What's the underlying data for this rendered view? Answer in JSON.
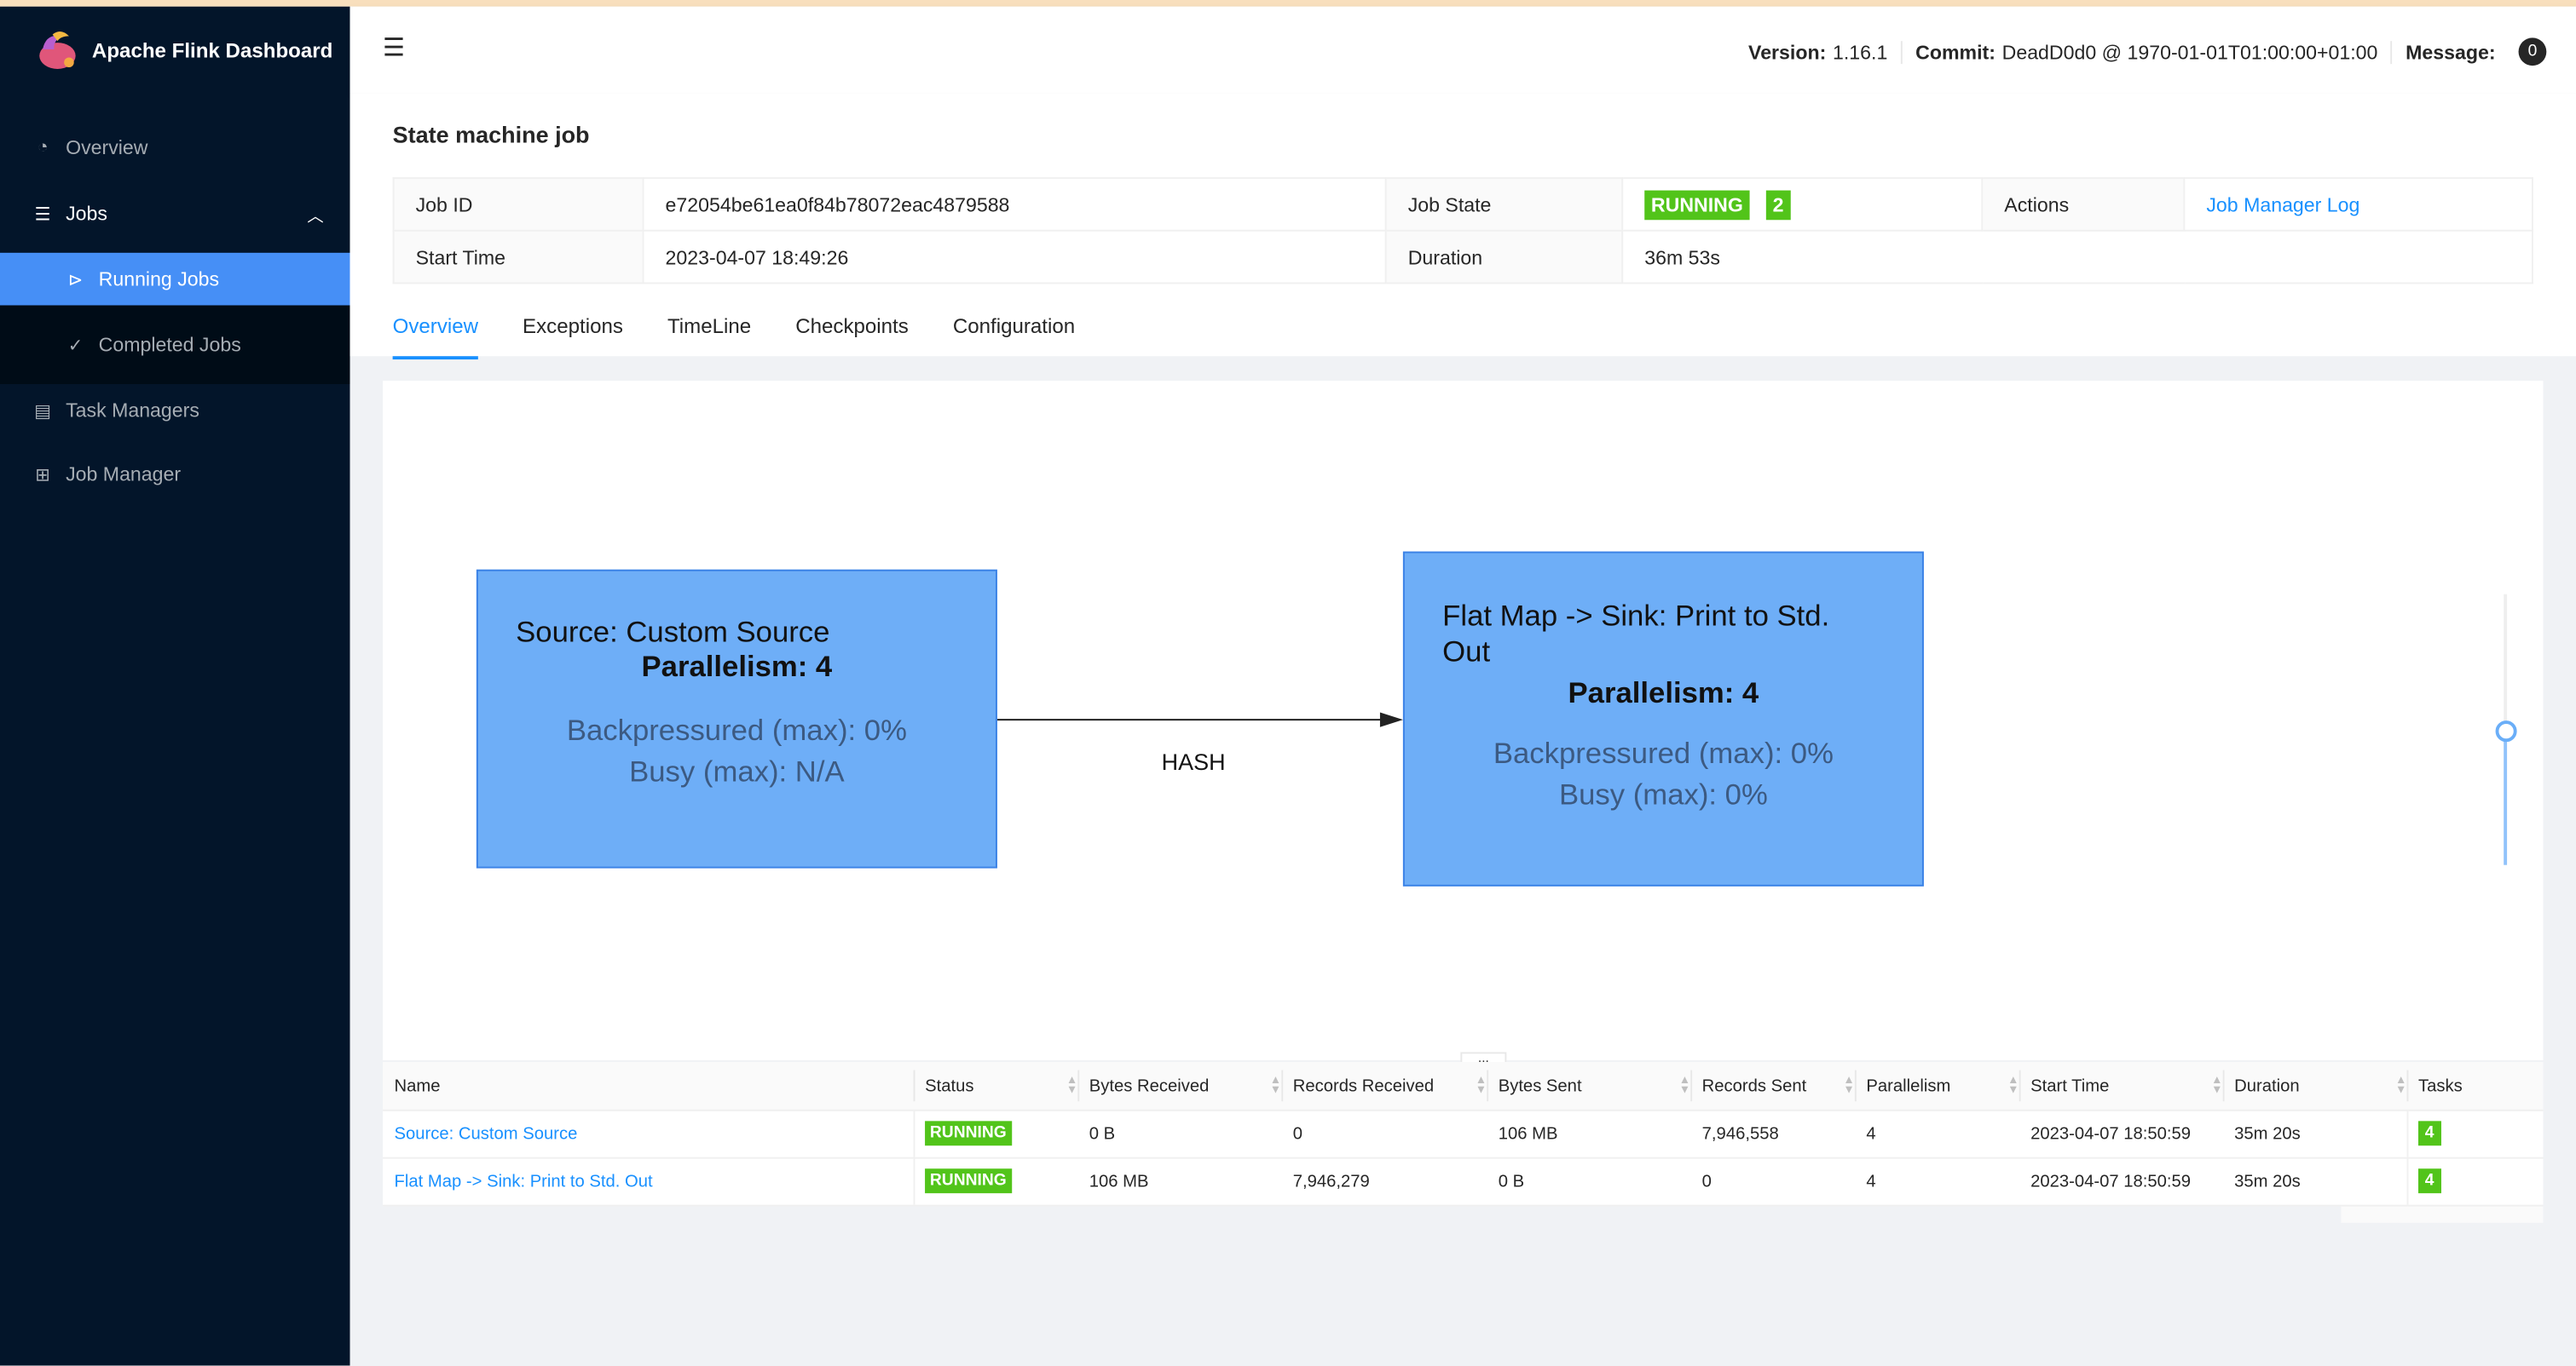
{
  "app": {
    "title": "Apache Flink Dashboard"
  },
  "sidebar": {
    "items": [
      {
        "label": "Overview",
        "icon": "dashboard-icon"
      },
      {
        "label": "Jobs",
        "icon": "list-icon"
      },
      {
        "label": "Running Jobs",
        "icon": "play-circle-icon"
      },
      {
        "label": "Completed Jobs",
        "icon": "check-circle-icon"
      },
      {
        "label": "Task Managers",
        "icon": "schedule-icon"
      },
      {
        "label": "Job Manager",
        "icon": "cluster-icon"
      }
    ]
  },
  "header": {
    "version_label": "Version:",
    "version": "1.16.1",
    "commit_label": "Commit:",
    "commit": "DeadD0d0 @ 1970-01-01T01:00:00+01:00",
    "message_label": "Message:",
    "message_count": "0"
  },
  "job": {
    "title": "State machine job",
    "id_label": "Job ID",
    "id": "e72054be61ea0f84b78072eac4879588",
    "state_label": "Job State",
    "state": "RUNNING",
    "state_count": "2",
    "actions_label": "Actions",
    "actions_link": "Job Manager Log",
    "start_label": "Start Time",
    "start": "2023-04-07 18:49:26",
    "duration_label": "Duration",
    "duration": "36m 53s"
  },
  "tabs": [
    "Overview",
    "Exceptions",
    "TimeLine",
    "Checkpoints",
    "Configuration"
  ],
  "graph": {
    "nodes": [
      {
        "name": "Source: Custom Source",
        "parallelism": "Parallelism: 4",
        "backpressured": "Backpressured (max): 0%",
        "busy": "Busy (max): N/A"
      },
      {
        "name": "Flat Map -> Sink: Print to Std. Out",
        "parallelism": "Parallelism: 4",
        "backpressured": "Backpressured (max): 0%",
        "busy": "Busy (max): 0%"
      }
    ],
    "edge_label": "HASH",
    "zoom_level": 0.5
  },
  "table": {
    "more": "...",
    "columns": [
      "Name",
      "Status",
      "Bytes Received",
      "Records Received",
      "Bytes Sent",
      "Records Sent",
      "Parallelism",
      "Start Time",
      "Duration",
      "Tasks"
    ],
    "rows": [
      [
        "Source: Custom Source",
        "RUNNING",
        "0 B",
        "0",
        "106 MB",
        "7,946,558",
        "4",
        "2023-04-07 18:50:59",
        "35m 20s",
        "4"
      ],
      [
        "Flat Map -> Sink: Print to Std. Out",
        "RUNNING",
        "106 MB",
        "7,946,279",
        "0 B",
        "0",
        "4",
        "2023-04-07 18:50:59",
        "35m 20s",
        "4"
      ]
    ]
  },
  "colors": {
    "sidebar": "#03152a",
    "active": "#468ff6",
    "running": "#52c41a",
    "node": "#6eaef7",
    "link": "#1890ff"
  }
}
